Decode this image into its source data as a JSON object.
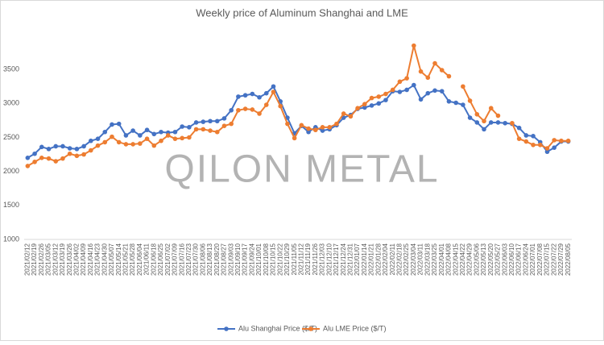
{
  "chart_data": {
    "type": "line",
    "title": "Weekly price of Aluminum Shanghai and LME",
    "watermark": "QILON METAL",
    "categories": [
      "2021/02/12",
      "2021/02/19",
      "2021/02/26",
      "2021/03/05",
      "2021/03/12",
      "2021/03/19",
      "2021/03/26",
      "2021/04/02",
      "2021/04/09",
      "2021/04/16",
      "2021/04/23",
      "2021/04/30",
      "2021/05/07",
      "2021/05/14",
      "2021/05/21",
      "2021/05/28",
      "2021/06/04",
      "2021/06/11",
      "2021/06/18",
      "2021/06/25",
      "2021/07/02",
      "2021/07/09",
      "2021/07/16",
      "2021/07/23",
      "2021/07/30",
      "2021/08/06",
      "2021/08/13",
      "2021/08/20",
      "2021/08/27",
      "2021/09/03",
      "2021/09/10",
      "2021/09/17",
      "2021/09/24",
      "2021/10/01",
      "2021/10/08",
      "2021/10/15",
      "2021/10/22",
      "2021/10/29",
      "2021/11/05",
      "2021/11/12",
      "2021/11/19",
      "2021/11/26",
      "2021/12/03",
      "2021/12/10",
      "2021/12/17",
      "2021/12/24",
      "2021/12/31",
      "2022/01/07",
      "2022/01/14",
      "2022/01/21",
      "2022/01/28",
      "2022/02/04",
      "2022/02/11",
      "2022/02/18",
      "2022/02/25",
      "2022/03/04",
      "2022/03/11",
      "2022/03/18",
      "2022/03/25",
      "2022/04/01",
      "2022/04/08",
      "2022/04/15",
      "2022/04/22",
      "2022/04/29",
      "2022/05/06",
      "2022/05/13",
      "2022/05/20",
      "2022/05/27",
      "2022/06/03",
      "2022/06/10",
      "2022/06/17",
      "2022/06/24",
      "2022/07/01",
      "2022/07/08",
      "2022/07/15",
      "2022/07/22",
      "2022/07/29",
      "2022/08/05"
    ],
    "series": [
      {
        "name": "Alu Shanghai Price ($/T)",
        "color": "#4472c4",
        "values": [
          2200,
          2260,
          2360,
          2330,
          2370,
          2370,
          2340,
          2330,
          2370,
          2450,
          2480,
          2580,
          2690,
          2700,
          2530,
          2600,
          2530,
          2610,
          2550,
          2580,
          2570,
          2580,
          2660,
          2650,
          2720,
          2730,
          2740,
          2740,
          2780,
          2900,
          3100,
          3120,
          3140,
          3090,
          3150,
          3250,
          3030,
          2790,
          2560,
          2670,
          2580,
          2650,
          2600,
          2620,
          2680,
          2790,
          2830,
          2920,
          2940,
          2970,
          3000,
          3050,
          3180,
          3170,
          3200,
          3270,
          3060,
          3150,
          3190,
          3180,
          3030,
          3010,
          2980,
          2790,
          2720,
          2620,
          2720,
          2720,
          2710,
          2700,
          2640,
          2530,
          2520,
          2430,
          2290,
          2350,
          2440,
          2440
        ]
      },
      {
        "name": "Alu LME Price ($/T)",
        "color": "#ed7d31",
        "values": [
          2080,
          2140,
          2200,
          2190,
          2150,
          2190,
          2260,
          2230,
          2250,
          2310,
          2380,
          2430,
          2510,
          2430,
          2400,
          2400,
          2410,
          2480,
          2380,
          2450,
          2530,
          2480,
          2490,
          2500,
          2620,
          2620,
          2600,
          2580,
          2670,
          2700,
          2900,
          2920,
          2910,
          2850,
          2980,
          3170,
          2960,
          2700,
          2490,
          2680,
          2630,
          2610,
          2650,
          2650,
          2700,
          2850,
          2810,
          2930,
          2990,
          3080,
          3100,
          3140,
          3200,
          3320,
          3370,
          3850,
          3470,
          3380,
          3590,
          3490,
          3400,
          null,
          3250,
          3040,
          2840,
          2740,
          2930,
          2820,
          null,
          2710,
          2480,
          2440,
          2390,
          2390,
          2340,
          2460,
          2450,
          2450
        ]
      }
    ],
    "ylim": [
      1000,
      4000
    ],
    "yticks": [
      1000,
      1500,
      2000,
      2500,
      3000,
      3500
    ],
    "grid": false
  }
}
